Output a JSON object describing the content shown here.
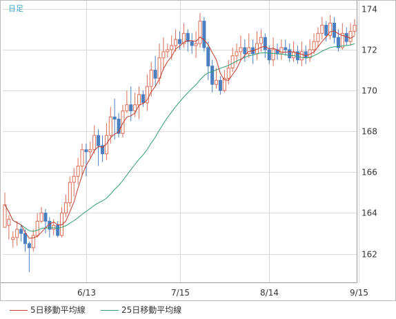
{
  "chart_data": {
    "type": "candlestick",
    "period_label": "日足",
    "y_ticks": [
      162,
      164,
      166,
      168,
      170,
      172,
      174
    ],
    "ylim": [
      160.6,
      174.4
    ],
    "x_ticks": [
      {
        "index": 20,
        "label": "6/13"
      },
      {
        "index": 43,
        "label": "7/15"
      },
      {
        "index": 65,
        "label": "8/14"
      },
      {
        "index": 87,
        "label": "9/15"
      }
    ],
    "series_names": [
      "5日移動平均線",
      "25日移動平均線"
    ],
    "colors": {
      "up": "#d96b55",
      "down": "#4a7fc0",
      "ma5": "#c0392b",
      "ma25": "#2e9e6e",
      "grid": "#d9d9d9",
      "axis_text": "#333333",
      "label": "#3aa6c4"
    },
    "candles": [
      [
        163.3,
        164.4,
        163.4,
        165.0
      ],
      [
        163.4,
        163.7,
        162.7,
        163.9
      ],
      [
        162.7,
        162.8,
        162.3,
        163.1
      ],
      [
        162.8,
        163.2,
        162.4,
        163.6
      ],
      [
        163.2,
        163.0,
        162.6,
        163.4
      ],
      [
        163.0,
        162.5,
        162.1,
        163.2
      ],
      [
        162.5,
        162.3,
        161.1,
        162.6
      ],
      [
        162.3,
        162.9,
        162.1,
        163.2
      ],
      [
        162.9,
        163.6,
        162.8,
        164.0
      ],
      [
        163.6,
        164.0,
        163.5,
        164.3
      ],
      [
        164.0,
        163.6,
        163.0,
        164.2
      ],
      [
        163.6,
        163.2,
        162.8,
        163.8
      ],
      [
        163.2,
        163.4,
        162.9,
        163.7
      ],
      [
        163.4,
        162.9,
        162.8,
        163.6
      ],
      [
        162.9,
        164.0,
        162.8,
        164.3
      ],
      [
        164.0,
        164.5,
        163.8,
        164.9
      ],
      [
        164.5,
        165.5,
        164.3,
        165.8
      ],
      [
        165.5,
        165.8,
        164.8,
        166.2
      ],
      [
        165.8,
        166.3,
        165.4,
        166.7
      ],
      [
        166.3,
        167.1,
        165.8,
        167.4
      ],
      [
        167.1,
        167.0,
        165.8,
        167.4
      ],
      [
        167.0,
        167.1,
        166.7,
        167.5
      ],
      [
        167.1,
        167.8,
        166.9,
        168.3
      ],
      [
        167.8,
        167.3,
        166.3,
        168.1
      ],
      [
        167.3,
        166.9,
        166.5,
        167.8
      ],
      [
        166.9,
        167.8,
        166.6,
        168.4
      ],
      [
        167.8,
        168.7,
        167.4,
        169.2
      ],
      [
        168.7,
        168.6,
        167.6,
        169.6
      ],
      [
        168.6,
        167.9,
        167.7,
        168.9
      ],
      [
        167.9,
        169.0,
        167.7,
        169.3
      ],
      [
        169.0,
        169.3,
        168.9,
        170.0
      ],
      [
        169.3,
        169.0,
        168.5,
        170.2
      ],
      [
        169.0,
        169.3,
        168.7,
        169.9
      ],
      [
        169.3,
        169.8,
        168.6,
        170.2
      ],
      [
        169.8,
        169.4,
        169.2,
        170.0
      ],
      [
        169.4,
        170.2,
        169.0,
        170.8
      ],
      [
        170.2,
        171.0,
        169.7,
        171.4
      ],
      [
        171.0,
        170.6,
        170.2,
        171.7
      ],
      [
        170.6,
        171.6,
        170.3,
        172.3
      ],
      [
        171.6,
        171.9,
        171.0,
        172.6
      ],
      [
        171.9,
        172.0,
        171.6,
        172.3
      ],
      [
        172.0,
        172.2,
        171.5,
        172.7
      ],
      [
        172.2,
        172.5,
        171.9,
        173.0
      ],
      [
        172.5,
        172.3,
        172.0,
        172.9
      ],
      [
        172.3,
        172.8,
        172.1,
        173.3
      ],
      [
        172.8,
        172.4,
        171.9,
        173.0
      ],
      [
        172.4,
        172.2,
        171.8,
        172.8
      ],
      [
        172.2,
        172.3,
        171.6,
        172.9
      ],
      [
        172.3,
        173.4,
        172.1,
        173.8
      ],
      [
        173.4,
        172.1,
        171.9,
        173.6
      ],
      [
        172.1,
        171.2,
        170.5,
        172.4
      ],
      [
        171.2,
        170.3,
        169.9,
        171.5
      ],
      [
        170.3,
        170.5,
        170.1,
        171.1
      ],
      [
        170.5,
        170.0,
        169.8,
        170.7
      ],
      [
        170.0,
        170.6,
        169.9,
        171.0
      ],
      [
        170.6,
        171.1,
        170.3,
        171.5
      ],
      [
        171.1,
        171.7,
        170.9,
        172.1
      ],
      [
        171.7,
        171.9,
        171.3,
        172.3
      ],
      [
        171.9,
        172.1,
        171.5,
        172.7
      ],
      [
        172.1,
        171.8,
        171.4,
        172.5
      ],
      [
        171.8,
        172.1,
        171.6,
        172.8
      ],
      [
        172.1,
        171.8,
        171.3,
        172.5
      ],
      [
        171.8,
        172.3,
        171.5,
        172.9
      ],
      [
        172.3,
        172.6,
        171.9,
        173.0
      ],
      [
        172.6,
        172.0,
        171.6,
        172.8
      ],
      [
        172.0,
        171.5,
        171.3,
        172.2
      ],
      [
        171.5,
        172.0,
        171.2,
        172.6
      ],
      [
        172.0,
        171.8,
        171.5,
        172.3
      ],
      [
        171.8,
        172.1,
        171.5,
        172.5
      ],
      [
        172.1,
        172.0,
        171.7,
        172.5
      ],
      [
        172.0,
        171.6,
        171.4,
        172.3
      ],
      [
        171.6,
        171.9,
        171.4,
        172.4
      ],
      [
        171.9,
        171.5,
        171.3,
        172.2
      ],
      [
        171.5,
        171.9,
        171.2,
        172.4
      ],
      [
        171.9,
        171.6,
        171.3,
        172.2
      ],
      [
        171.6,
        172.0,
        171.4,
        172.5
      ],
      [
        172.0,
        172.4,
        171.8,
        172.8
      ],
      [
        172.4,
        172.8,
        172.1,
        173.1
      ],
      [
        172.8,
        173.2,
        172.5,
        173.6
      ],
      [
        173.2,
        172.7,
        172.4,
        173.4
      ],
      [
        172.7,
        173.3,
        172.5,
        173.7
      ],
      [
        173.3,
        172.6,
        172.3,
        173.6
      ],
      [
        172.6,
        172.1,
        171.9,
        173.0
      ],
      [
        172.1,
        172.8,
        172.0,
        173.3
      ],
      [
        172.8,
        172.4,
        172.2,
        173.1
      ],
      [
        172.4,
        172.9,
        172.2,
        173.3
      ],
      [
        172.9,
        173.2,
        172.7,
        173.5
      ]
    ]
  }
}
